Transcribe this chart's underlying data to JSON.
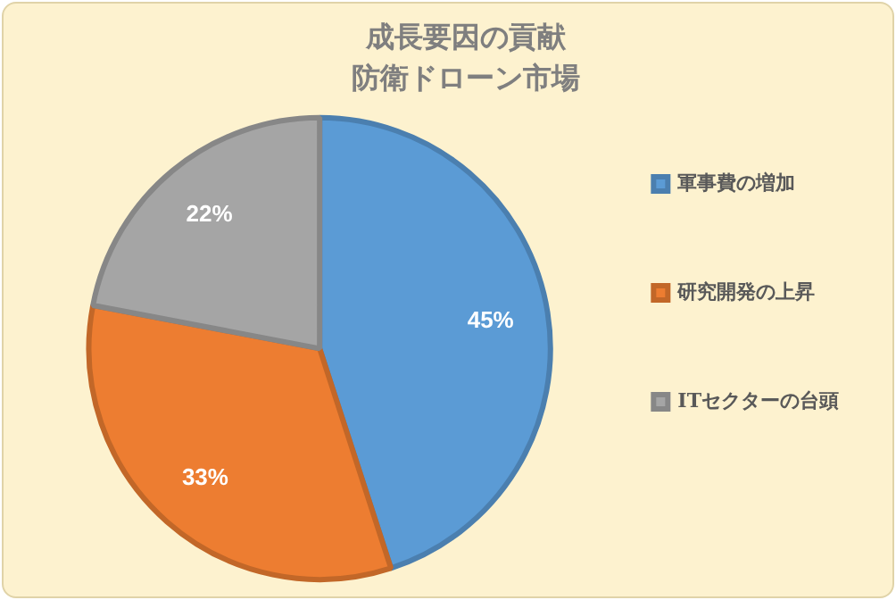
{
  "chart_data": {
    "type": "pie",
    "title": "成長要因の貢献",
    "subtitle": "防衛ドローン市場",
    "categories": [
      "軍事費の増加",
      "研究開発の上昇",
      "ITセクターの台頭"
    ],
    "values": [
      45,
      33,
      22
    ],
    "colors": [
      "#5b9bd5",
      "#ed7d31",
      "#a5a5a5"
    ],
    "value_labels": [
      "45%",
      "33%",
      "22%"
    ],
    "legend": "right"
  }
}
